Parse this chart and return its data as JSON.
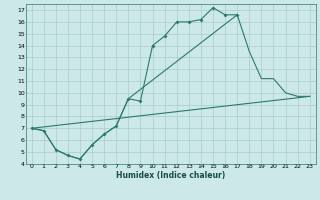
{
  "title": "",
  "xlabel": "Humidex (Indice chaleur)",
  "bg_color": "#cce8e8",
  "grid_color": "#aacccc",
  "line_color": "#2a7a6a",
  "xlim": [
    -0.5,
    23.5
  ],
  "ylim": [
    4,
    17.5
  ],
  "xticks": [
    0,
    1,
    2,
    3,
    4,
    5,
    6,
    7,
    8,
    9,
    10,
    11,
    12,
    13,
    14,
    15,
    16,
    17,
    18,
    19,
    20,
    21,
    22,
    23
  ],
  "yticks": [
    4,
    5,
    6,
    7,
    8,
    9,
    10,
    11,
    12,
    13,
    14,
    15,
    16,
    17
  ],
  "line1_x": [
    0,
    1,
    2,
    3,
    4,
    5,
    6,
    7,
    8,
    9,
    10,
    11,
    12,
    13,
    14,
    15,
    16,
    17
  ],
  "line1_y": [
    7.0,
    6.8,
    5.2,
    4.7,
    4.4,
    5.6,
    6.5,
    7.2,
    9.5,
    9.3,
    14.0,
    14.8,
    16.0,
    16.0,
    16.2,
    17.2,
    16.6,
    16.6
  ],
  "line2_x": [
    0,
    1,
    2,
    3,
    4,
    5,
    6,
    7,
    8,
    17,
    18,
    19,
    20,
    21,
    22,
    23
  ],
  "line2_y": [
    7.0,
    6.8,
    5.2,
    4.7,
    4.4,
    5.6,
    6.5,
    7.2,
    9.5,
    16.6,
    13.5,
    11.2,
    11.2,
    10.0,
    9.7,
    9.7
  ],
  "line3_x": [
    0,
    23
  ],
  "line3_y": [
    7.0,
    9.7
  ]
}
